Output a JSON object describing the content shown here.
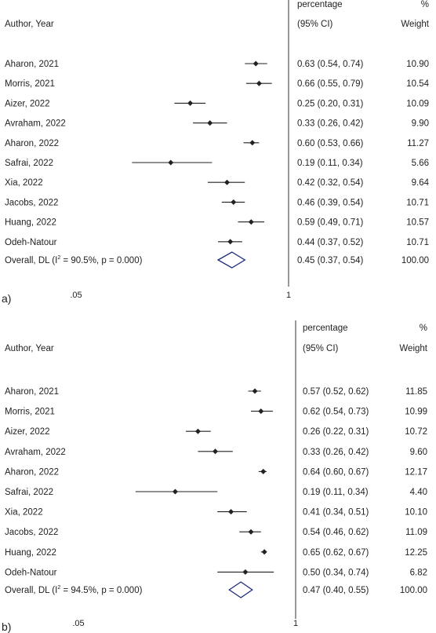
{
  "chart_data": [
    {
      "type": "forest",
      "panel_label": "a)",
      "header": {
        "study_col": "Author, Year",
        "estimate_col_line1": "percentage",
        "estimate_col_line2": "(95% CI)",
        "weight_col_line1": "%",
        "weight_col_line2": "Weight"
      },
      "x_axis": {
        "scale": "log",
        "ticks": [
          0.05,
          1
        ],
        "tick_labels": [
          ".05",
          "1"
        ],
        "reference_line": 1
      },
      "studies": [
        {
          "label": "Aharon, 2021",
          "est": 0.63,
          "lo": 0.54,
          "hi": 0.74,
          "ci_text": "0.63 (0.54, 0.74)",
          "weight": "10.90"
        },
        {
          "label": "Morris, 2021",
          "est": 0.66,
          "lo": 0.55,
          "hi": 0.79,
          "ci_text": "0.66 (0.55, 0.79)",
          "weight": "10.54"
        },
        {
          "label": "Aizer, 2022",
          "est": 0.25,
          "lo": 0.2,
          "hi": 0.31,
          "ci_text": "0.25 (0.20, 0.31)",
          "weight": "10.09"
        },
        {
          "label": "Avraham, 2022",
          "est": 0.33,
          "lo": 0.26,
          "hi": 0.42,
          "ci_text": "0.33 (0.26, 0.42)",
          "weight": "9.90"
        },
        {
          "label": "Aharon, 2022",
          "est": 0.6,
          "lo": 0.53,
          "hi": 0.66,
          "ci_text": "0.60 (0.53, 0.66)",
          "weight": "11.27"
        },
        {
          "label": "Safrai, 2022",
          "est": 0.19,
          "lo": 0.11,
          "hi": 0.34,
          "ci_text": "0.19 (0.11, 0.34)",
          "weight": "5.66"
        },
        {
          "label": "Xia, 2022",
          "est": 0.42,
          "lo": 0.32,
          "hi": 0.54,
          "ci_text": "0.42 (0.32, 0.54)",
          "weight": "9.64"
        },
        {
          "label": "Jacobs, 2022",
          "est": 0.46,
          "lo": 0.39,
          "hi": 0.54,
          "ci_text": "0.46 (0.39, 0.54)",
          "weight": "10.71"
        },
        {
          "label": "Huang, 2022",
          "est": 0.59,
          "lo": 0.49,
          "hi": 0.71,
          "ci_text": "0.59 (0.49, 0.71)",
          "weight": "10.57"
        },
        {
          "label": "Odeh-Natour",
          "est": 0.44,
          "lo": 0.37,
          "hi": 0.52,
          "ci_text": "0.44 (0.37, 0.52)",
          "weight": "10.71"
        }
      ],
      "overall": {
        "label_prefix": "Overall, DL (I",
        "label_sup": "2",
        "label_suffix": " = 90.5%, p = 0.000)",
        "est": 0.45,
        "lo": 0.37,
        "hi": 0.54,
        "ci_text": "0.45 (0.37, 0.54)",
        "weight": "100.00"
      }
    },
    {
      "type": "forest",
      "panel_label": "b)",
      "header": {
        "study_col": "Author, Year",
        "estimate_col_line1": "percentage",
        "estimate_col_line2": "(95% CI)",
        "weight_col_line1": "%",
        "weight_col_line2": "Weight"
      },
      "x_axis": {
        "scale": "log",
        "ticks": [
          0.05,
          1
        ],
        "tick_labels": [
          ".05",
          "1"
        ],
        "reference_line": 1
      },
      "studies": [
        {
          "label": "Aharon, 2021",
          "est": 0.57,
          "lo": 0.52,
          "hi": 0.62,
          "ci_text": "0.57 (0.52, 0.62)",
          "weight": "11.85"
        },
        {
          "label": "Morris, 2021",
          "est": 0.62,
          "lo": 0.54,
          "hi": 0.73,
          "ci_text": "0.62 (0.54, 0.73)",
          "weight": "10.99"
        },
        {
          "label": "Aizer, 2022",
          "est": 0.26,
          "lo": 0.22,
          "hi": 0.31,
          "ci_text": "0.26 (0.22, 0.31)",
          "weight": "10.72"
        },
        {
          "label": "Avraham, 2022",
          "est": 0.33,
          "lo": 0.26,
          "hi": 0.42,
          "ci_text": "0.33 (0.26, 0.42)",
          "weight": "9.60"
        },
        {
          "label": "Aharon, 2022",
          "est": 0.64,
          "lo": 0.6,
          "hi": 0.67,
          "ci_text": "0.64 (0.60, 0.67)",
          "weight": "12.17"
        },
        {
          "label": "Safrai, 2022",
          "est": 0.19,
          "lo": 0.11,
          "hi": 0.34,
          "ci_text": "0.19 (0.11, 0.34)",
          "weight": "4.40"
        },
        {
          "label": "Xia, 2022",
          "est": 0.41,
          "lo": 0.34,
          "hi": 0.51,
          "ci_text": "0.41 (0.34, 0.51)",
          "weight": "10.10"
        },
        {
          "label": "Jacobs, 2022",
          "est": 0.54,
          "lo": 0.46,
          "hi": 0.62,
          "ci_text": "0.54 (0.46, 0.62)",
          "weight": "11.09"
        },
        {
          "label": "Huang, 2022",
          "est": 0.65,
          "lo": 0.62,
          "hi": 0.67,
          "ci_text": "0.65 (0.62, 0.67)",
          "weight": "12.25"
        },
        {
          "label": "Odeh-Natour",
          "est": 0.5,
          "lo": 0.34,
          "hi": 0.74,
          "ci_text": "0.50 (0.34, 0.74)",
          "weight": "6.82"
        }
      ],
      "overall": {
        "label_prefix": "Overall, DL (I",
        "label_sup": "2",
        "label_suffix": " = 94.5%, p = 0.000)",
        "est": 0.47,
        "lo": 0.4,
        "hi": 0.55,
        "ci_text": "0.47 (0.40, 0.55)",
        "weight": "100.00"
      }
    }
  ],
  "colors": {
    "ink": "#222222",
    "diamond": "#1f2a7a",
    "axis": "#333333"
  }
}
